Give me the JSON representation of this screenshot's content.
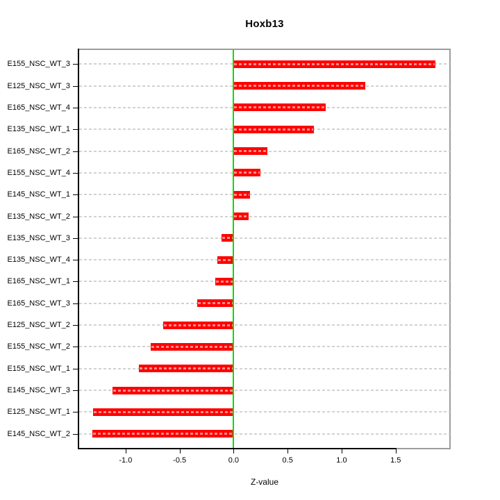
{
  "chart_data": {
    "type": "bar",
    "orientation": "horizontal",
    "title": "Hoxb13",
    "xlabel": "Z-value",
    "ylabel": "",
    "categories": [
      "E155_NSC_WT_3",
      "E125_NSC_WT_3",
      "E165_NSC_WT_4",
      "E135_NSC_WT_1",
      "E165_NSC_WT_2",
      "E155_NSC_WT_4",
      "E145_NSC_WT_1",
      "E135_NSC_WT_2",
      "E135_NSC_WT_3",
      "E135_NSC_WT_4",
      "E165_NSC_WT_1",
      "E165_NSC_WT_3",
      "E125_NSC_WT_2",
      "E155_NSC_WT_2",
      "E155_NSC_WT_1",
      "E145_NSC_WT_3",
      "E125_NSC_WT_1",
      "E145_NSC_WT_2"
    ],
    "values": [
      1.87,
      1.22,
      0.85,
      0.74,
      0.31,
      0.25,
      0.15,
      0.14,
      -0.11,
      -0.15,
      -0.17,
      -0.34,
      -0.65,
      -0.77,
      -0.88,
      -1.12,
      -1.3,
      -1.31
    ],
    "xlim": [
      -1.43,
      2.0
    ],
    "xtick_values": [
      -1.0,
      -0.5,
      0.0,
      0.5,
      1.0,
      1.5
    ],
    "xtick_labels": [
      "-1.0",
      "-0.5",
      "0.0",
      "0.5",
      "1.0",
      "1.5"
    ],
    "grid": true,
    "zero_line": true,
    "colors": {
      "bar": "#ff0000",
      "zero_line": "#00e000",
      "grid": "#d2d2d2",
      "box_border": "#9c9c9c",
      "text": "#000000"
    }
  }
}
